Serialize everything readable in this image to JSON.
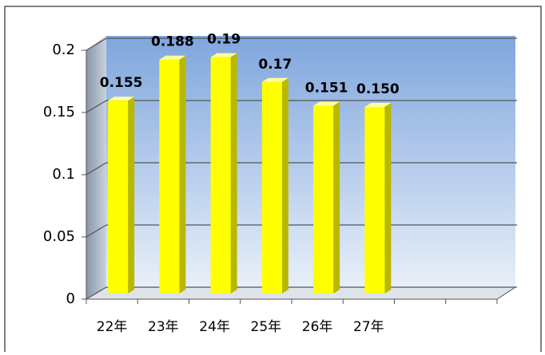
{
  "chart_data": {
    "type": "bar",
    "categories": [
      "22年",
      "23年",
      "24年",
      "25年",
      "26年",
      "27年",
      null,
      null
    ],
    "values": [
      0.155,
      0.188,
      0.19,
      0.17,
      0.151,
      0.15,
      null,
      null
    ],
    "value_labels": [
      "0.155",
      "0.188",
      "0.19",
      "0.17",
      "0.151",
      "0.150",
      null,
      null
    ],
    "color": "#ffff00",
    "ylim": [
      0,
      0.2
    ],
    "yticks": [
      0,
      0.05,
      0.1,
      0.15,
      0.2
    ],
    "grid": true
  }
}
